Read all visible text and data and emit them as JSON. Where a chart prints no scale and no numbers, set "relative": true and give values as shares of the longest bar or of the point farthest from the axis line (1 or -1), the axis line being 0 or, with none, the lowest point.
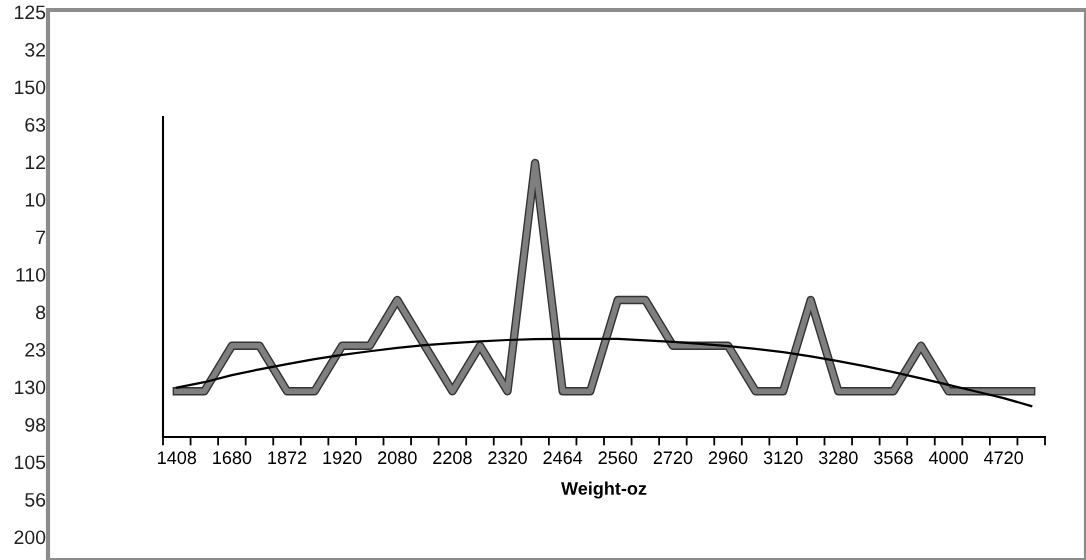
{
  "chart_data": {
    "type": "line",
    "relative": true,
    "xlabel": "Weight-oz",
    "categories": [
      "1408",
      null,
      "1680",
      null,
      "1872",
      null,
      "1920",
      null,
      "2080",
      null,
      "2208",
      null,
      "2320",
      null,
      "2464",
      null,
      "2560",
      null,
      "2720",
      null,
      "2960",
      null,
      "3120",
      null,
      "3280",
      null,
      "3568",
      null,
      "4000",
      null,
      "4720",
      null
    ],
    "series": [
      {
        "color": "#7f7f7f",
        "values": [
          0.167,
          0.167,
          0.333,
          0.333,
          0.167,
          0.167,
          0.333,
          0.333,
          0.5,
          0.333,
          0.167,
          0.333,
          0.167,
          1,
          0.167,
          0.167,
          0.5,
          0.5,
          0.333,
          0.333,
          0.333,
          0.167,
          0.167,
          0.5,
          0.167,
          0.167,
          0.167,
          0.333,
          0.167,
          0.167,
          0.167,
          0.167
        ]
      },
      {
        "type": "line",
        "color": "#000000",
        "values": [
          0.18,
          0.2,
          0.226,
          0.247,
          0.266,
          0.284,
          0.3,
          0.313,
          0.325,
          0.335,
          0.343,
          0.349,
          0.354,
          0.357,
          0.358,
          0.358,
          0.358,
          0.353,
          0.347,
          0.34,
          0.332,
          0.322,
          0.31,
          0.294,
          0.277,
          0.258,
          0.237,
          0.214,
          0.19,
          0.166,
          0.142,
          0.113
        ]
      }
    ],
    "annotations": [
      "125",
      "32",
      "150",
      "63",
      "12",
      "10",
      "7",
      "110",
      "8",
      "23",
      "130",
      "98",
      "105",
      "56",
      "200"
    ]
  }
}
